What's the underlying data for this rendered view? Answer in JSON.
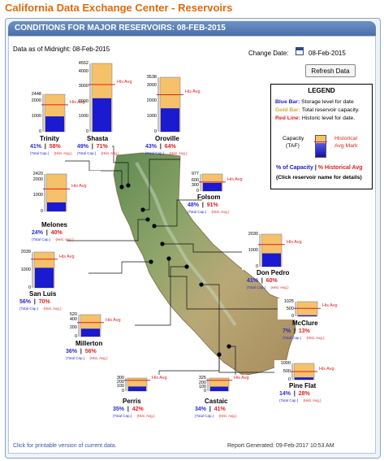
{
  "page_title": "California Data Exchange Center - Reservoirs",
  "header": "CONDITIONS FOR MAJOR RESERVOIRS: 08-FEB-2015",
  "as_of": "Data as of Midnight: 08-Feb-2015",
  "change_date_label": "Change Date:",
  "change_date_value": "08-Feb-2015",
  "refresh_label": "Refresh Data",
  "legend": {
    "title": "LEGEND",
    "blue_key": "Blue Bar:",
    "blue_text": "Storage level for date",
    "gold_key": "Gold Bar:",
    "gold_text": "Total reservoir capacity.",
    "red_key": "Red Line:",
    "red_text": "Historic level for date.",
    "capacity_label": "Capacity",
    "taf_label": "(TAF)",
    "historical_label": "Historical",
    "avg_mark_label": "Avg Mark",
    "pct_capacity": "% of Capacity",
    "separator": "|",
    "pct_hist": "% Historical Avg",
    "click_note": "(Click reservoir name for details)"
  },
  "his_avg_label": "His Avg",
  "total_cap_label": "(Total Cap.)",
  "hist_avg_label": "(Hist. Avg.)",
  "colors": {
    "storage": "#1a1ad0",
    "capacity": "#f5c16a",
    "historic": "#e02020"
  },
  "reservoirs": [
    {
      "name": "Trinity",
      "capacity": 2448,
      "ticks": [
        "2448",
        "2000",
        "1000",
        "0"
      ],
      "pct_cap": "41%",
      "pct_hist": "58%",
      "fill": 0.41,
      "hist_frac": 0.72
    },
    {
      "name": "Shasta",
      "capacity": 4552,
      "ticks": [
        "4552",
        "4000",
        "3000",
        "2000",
        "1000",
        "0"
      ],
      "pct_cap": "49%",
      "pct_hist": "71%",
      "fill": 0.49,
      "hist_frac": 0.69
    },
    {
      "name": "Oroville",
      "capacity": 3538,
      "ticks": [
        "3538",
        "3000",
        "2000",
        "1000",
        "0"
      ],
      "pct_cap": "43%",
      "pct_hist": "64%",
      "fill": 0.43,
      "hist_frac": 0.68
    },
    {
      "name": "Melones",
      "capacity": 2420,
      "ticks": [
        "2420",
        "2000",
        "1000",
        "0"
      ],
      "pct_cap": "24%",
      "pct_hist": "40%",
      "fill": 0.24,
      "hist_frac": 0.6
    },
    {
      "name": "Folsom",
      "capacity": 977,
      "ticks": [
        "977",
        "600",
        "300",
        "0"
      ],
      "pct_cap": "48%",
      "pct_hist": "91%",
      "fill": 0.48,
      "hist_frac": 0.53
    },
    {
      "name": "Don Pedro",
      "capacity": 2030,
      "ticks": [
        "2030",
        "1000",
        "0"
      ],
      "pct_cap": "41%",
      "pct_hist": "60%",
      "fill": 0.41,
      "hist_frac": 0.68
    },
    {
      "name": "San Luis",
      "capacity": 2039,
      "ticks": [
        "2039",
        "1000",
        "0"
      ],
      "pct_cap": "56%",
      "pct_hist": "70%",
      "fill": 0.56,
      "hist_frac": 0.8
    },
    {
      "name": "McClure",
      "capacity": 1025,
      "ticks": [
        "1025",
        "500",
        "0"
      ],
      "pct_cap": "7%",
      "pct_hist": "13%",
      "fill": 0.07,
      "hist_frac": 0.54
    },
    {
      "name": "Millerton",
      "capacity": 520,
      "ticks": [
        "520",
        "400",
        "200",
        "0"
      ],
      "pct_cap": "36%",
      "pct_hist": "56%",
      "fill": 0.36,
      "hist_frac": 0.64
    },
    {
      "name": "Pine Flat",
      "capacity": 1000,
      "ticks": [
        "1000",
        "500",
        "0"
      ],
      "pct_cap": "14%",
      "pct_hist": "28%",
      "fill": 0.14,
      "hist_frac": 0.5
    },
    {
      "name": "Perris",
      "capacity": 300,
      "ticks": [
        "300",
        "200",
        "100",
        "0"
      ],
      "pct_cap": "35%",
      "pct_hist": "42%",
      "fill": 0.35,
      "hist_frac": 0.83
    },
    {
      "name": "Castaic",
      "capacity": 325,
      "ticks": [
        "325",
        "200",
        "100",
        "0"
      ],
      "pct_cap": "34%",
      "pct_hist": "41%",
      "fill": 0.34,
      "hist_frac": 0.83
    }
  ],
  "footer_link": "Click for printable version of current data.",
  "footer_report": "Report Generated: 09-Feb-2017 10:53 AM"
}
